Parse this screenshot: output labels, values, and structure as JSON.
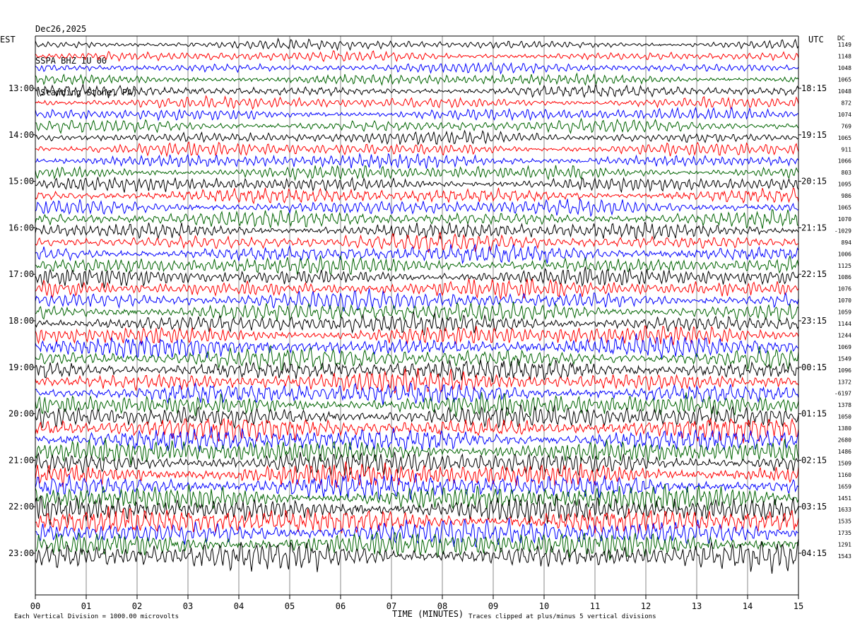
{
  "header": {
    "date": "Dec26,2025",
    "station": "SSPA BHZ IU 00",
    "location": "(Standing Stone, PA)"
  },
  "left_timezone": "EST",
  "right_timezone": "UTC",
  "dc_header": "DC",
  "footer": {
    "scale_note": "Each Vertical Division = 1000.00 microvolts",
    "clip_note": "Traces clipped at plus/minus 5 vertical divisions"
  },
  "chart_data": {
    "type": "line",
    "xlabel": "TIME (MINUTES)",
    "xlim": [
      0,
      15
    ],
    "x_ticks": [
      "00",
      "01",
      "02",
      "03",
      "04",
      "05",
      "06",
      "07",
      "08",
      "09",
      "10",
      "11",
      "12",
      "13",
      "14",
      "15"
    ],
    "left_hour_labels": [
      "13:00",
      "14:00",
      "15:00",
      "16:00",
      "17:00",
      "18:00",
      "19:00",
      "20:00",
      "21:00",
      "22:00",
      "23:00"
    ],
    "right_hour_labels": [
      "18:15",
      "19:15",
      "20:15",
      "21:15",
      "22:15",
      "23:15",
      "00:15",
      "01:15",
      "02:15",
      "03:15",
      "04:15"
    ],
    "traces_per_hour": 4,
    "trace_minutes": 15,
    "trace_colors": [
      "#000000",
      "#ff0000",
      "#0000ff",
      "#006400"
    ],
    "dc_offsets": [
      "1149",
      "1148",
      "1048",
      "1065",
      "1048",
      "872",
      "1074",
      "769",
      "1065",
      "911",
      "1066",
      "803",
      "1095",
      "986",
      "1065",
      "1070",
      "-1029",
      "894",
      "1006",
      "1125",
      "1086",
      "1076",
      "1070",
      "1059",
      "1144",
      "1244",
      "1069",
      "1549",
      "1096",
      "1372",
      "-6197",
      "1378",
      "1050",
      "1380",
      "2680",
      "1486",
      "1509",
      "1160",
      "1659",
      "1451",
      "1633",
      "1535",
      "1735",
      "1291",
      "1543"
    ]
  }
}
